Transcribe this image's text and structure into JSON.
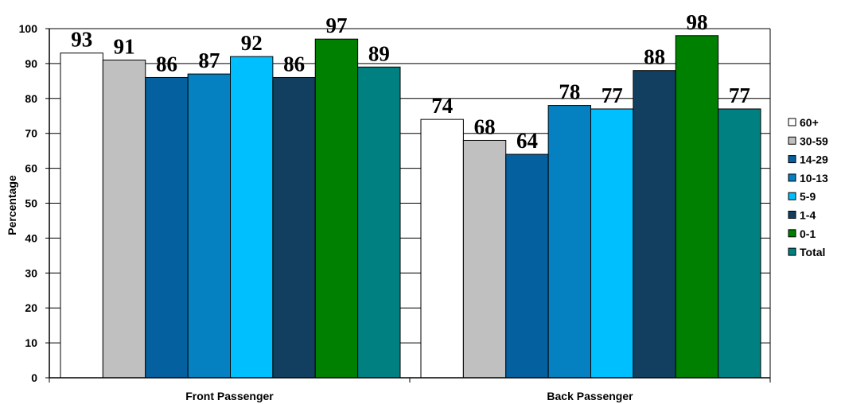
{
  "chart_data": {
    "type": "bar",
    "ylabel": "Percentage",
    "xlabel": "",
    "ylim": [
      0,
      100
    ],
    "yticks": [
      "0",
      "10",
      "20",
      "30",
      "40",
      "50",
      "60",
      "70",
      "80",
      "90",
      "100"
    ],
    "grid": true,
    "legend_position": "right",
    "categories": [
      "Front Passenger",
      "Back Passenger"
    ],
    "series": [
      {
        "name": "60+",
        "color": "#ffffff",
        "values": [
          93,
          74
        ],
        "labels": [
          "93",
          "74"
        ]
      },
      {
        "name": "30-59",
        "color": "#c0c0c0",
        "values": [
          91,
          68
        ],
        "labels": [
          "91",
          "68"
        ]
      },
      {
        "name": "14-29",
        "color": "#0560a0",
        "values": [
          86,
          64
        ],
        "labels": [
          "86",
          "64"
        ]
      },
      {
        "name": "10-13",
        "color": "#0580c0",
        "values": [
          87,
          78
        ],
        "labels": [
          "87",
          "78"
        ]
      },
      {
        "name": "5-9",
        "color": "#00bfff",
        "values": [
          92,
          77
        ],
        "labels": [
          "92",
          "77"
        ]
      },
      {
        "name": "1-4",
        "color": "#123f60",
        "values": [
          86,
          88
        ],
        "labels": [
          "86",
          "88"
        ]
      },
      {
        "name": "0-1",
        "color": "#008000",
        "values": [
          97,
          98
        ],
        "labels": [
          "97",
          "98"
        ]
      },
      {
        "name": "Total",
        "color": "#008080",
        "values": [
          89,
          77
        ],
        "labels": [
          "89",
          "77"
        ]
      }
    ]
  }
}
